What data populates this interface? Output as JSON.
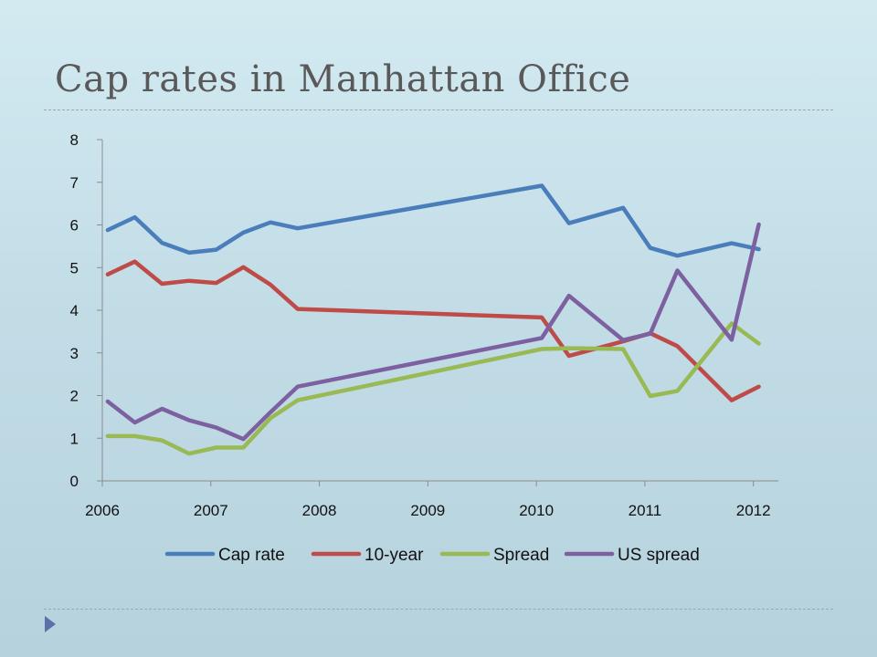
{
  "slide": {
    "title": "Cap rates in Manhattan Office",
    "nav_icon": "triangle-right-icon"
  },
  "colors": {
    "Cap rate": "#4a7ebb",
    "10-year": "#be4b48",
    "Spread": "#98b954",
    "US spread": "#7d60a0"
  },
  "chart_data": {
    "type": "line",
    "title": "",
    "xlabel": "",
    "ylabel": "",
    "xlim": [
      2006,
      2012.23
    ],
    "ylim": [
      0,
      8
    ],
    "x_ticks": [
      "2006",
      "2007",
      "2008",
      "2009",
      "2010",
      "2011",
      "2012"
    ],
    "y_ticks": [
      "0",
      "1",
      "2",
      "3",
      "4",
      "5",
      "6",
      "7",
      "8"
    ],
    "grid": false,
    "legend_position": "bottom",
    "series": [
      {
        "name": "Cap rate",
        "x": [
          2006.05,
          2006.3,
          2006.55,
          2006.8,
          2007.05,
          2007.3,
          2007.55,
          2007.8,
          2010.05,
          2010.3,
          2010.8,
          2011.05,
          2011.3,
          2011.8,
          2012.05
        ],
        "y": [
          5.88,
          6.18,
          5.58,
          5.35,
          5.42,
          5.82,
          6.06,
          5.92,
          6.92,
          6.04,
          6.4,
          5.46,
          5.28,
          5.57,
          5.43
        ]
      },
      {
        "name": "10-year",
        "x": [
          2006.05,
          2006.3,
          2006.55,
          2006.8,
          2007.05,
          2007.3,
          2007.55,
          2007.8,
          2010.05,
          2010.3,
          2010.8,
          2011.05,
          2011.3,
          2011.8,
          2012.05
        ],
        "y": [
          4.84,
          5.14,
          4.62,
          4.69,
          4.64,
          5.01,
          4.6,
          4.03,
          3.83,
          2.93,
          3.27,
          3.46,
          3.16,
          1.89,
          2.21
        ]
      },
      {
        "name": "Spread",
        "x": [
          2006.05,
          2006.3,
          2006.55,
          2006.8,
          2007.05,
          2007.3,
          2007.55,
          2007.8,
          2010.05,
          2010.3,
          2010.8,
          2011.05,
          2011.3,
          2011.8,
          2012.05
        ],
        "y": [
          1.05,
          1.05,
          0.95,
          0.64,
          0.78,
          0.78,
          1.47,
          1.89,
          3.09,
          3.11,
          3.09,
          1.99,
          2.11,
          3.69,
          3.22
        ]
      },
      {
        "name": "US spread",
        "x": [
          2006.05,
          2006.3,
          2006.55,
          2006.8,
          2007.05,
          2007.3,
          2007.55,
          2007.8,
          2010.05,
          2010.3,
          2010.8,
          2011.05,
          2011.3,
          2011.8,
          2012.05
        ],
        "y": [
          1.86,
          1.37,
          1.69,
          1.42,
          1.25,
          0.98,
          1.61,
          2.21,
          3.35,
          4.34,
          3.3,
          3.45,
          4.93,
          3.31,
          6.01
        ]
      }
    ]
  }
}
